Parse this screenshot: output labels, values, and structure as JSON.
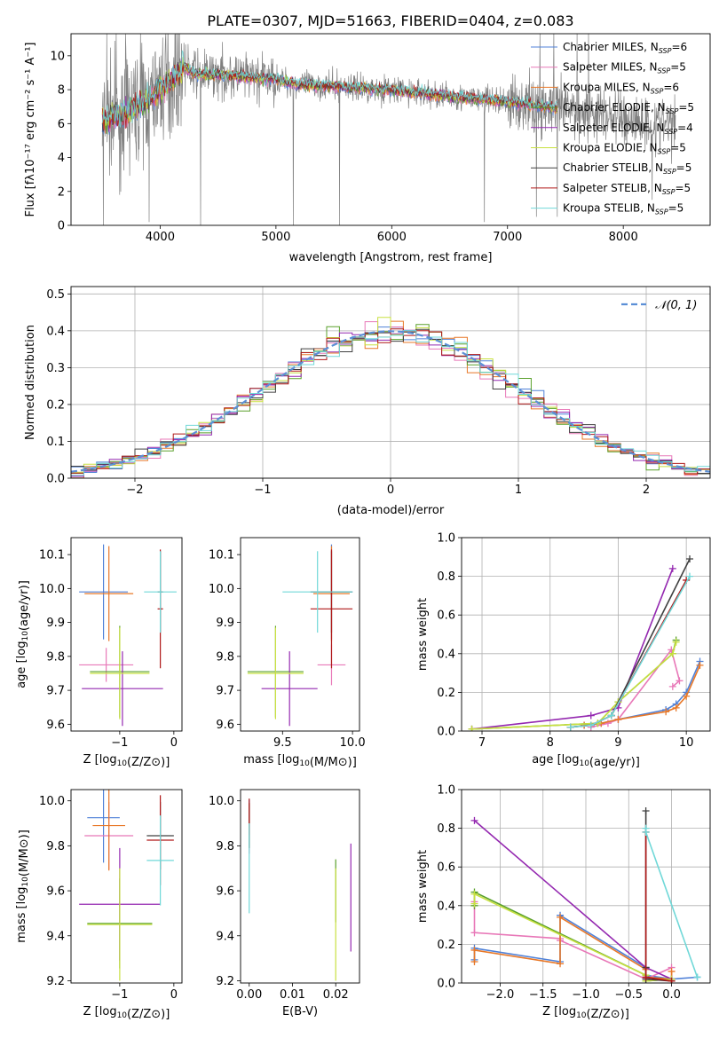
{
  "figure": {
    "title": "PLATE=0307, MJD=51663, FIBERID=0404, z=0.083"
  },
  "colors": {
    "Chabrier MILES": "#4f81d8",
    "Salpeter MILES": "#e878b8",
    "Kroupa MILES": "#e87828",
    "Chabrier ELODIE": "#5aa02c",
    "Salpeter ELODIE": "#9428b0",
    "Kroupa ELODIE": "#c8e040",
    "Chabrier STELIB": "#404040",
    "Salpeter STELIB": "#b01818",
    "Kroupa STELIB": "#70d8d8",
    "data": "#808080",
    "normal": "#5b8fd6"
  },
  "chart_data": [
    {
      "id": "spectrum",
      "type": "line",
      "title": "PLATE=0307, MJD=51663, FIBERID=0404, z=0.083",
      "xlabel": "wavelength [Angstrom, rest frame]",
      "ylabel": "Flux [fλ10⁻¹⁷ erg cm⁻² s⁻¹ A⁻¹]",
      "xlim": [
        3230,
        8750
      ],
      "ylim": [
        0,
        11.3
      ],
      "xticks": [
        4000,
        5000,
        6000,
        7000,
        8000
      ],
      "yticks": [
        0,
        2,
        4,
        6,
        8,
        10
      ],
      "grid": false,
      "legend_position": "top-right",
      "legend": [
        {
          "label": "Chabrier MILES, N",
          "sub": "SSP",
          "suffix": "=6"
        },
        {
          "label": "Salpeter MILES, N",
          "sub": "SSP",
          "suffix": "=5"
        },
        {
          "label": "Kroupa MILES, N",
          "sub": "SSP",
          "suffix": "=6"
        },
        {
          "label": "Chabrier ELODIE, N",
          "sub": "SSP",
          "suffix": "=5"
        },
        {
          "label": "Salpeter ELODIE, N",
          "sub": "SSP",
          "suffix": "=4"
        },
        {
          "label": "Kroupa ELODIE, N",
          "sub": "SSP",
          "suffix": "=5"
        },
        {
          "label": "Chabrier STELIB, N",
          "sub": "SSP",
          "suffix": "=5"
        },
        {
          "label": "Salpeter STELIB, N",
          "sub": "SSP",
          "suffix": "=5"
        },
        {
          "label": "Kroupa STELIB, N",
          "sub": "SSP",
          "suffix": "=5"
        }
      ],
      "data_range": [
        3500,
        8450
      ],
      "model_range": [
        3500,
        7430
      ],
      "continuum": [
        [
          3500,
          6.2
        ],
        [
          3700,
          6.6
        ],
        [
          3800,
          7.0
        ],
        [
          3900,
          7.4
        ],
        [
          4000,
          8.1
        ],
        [
          4100,
          8.6
        ],
        [
          4200,
          9.4
        ],
        [
          4300,
          8.9
        ],
        [
          4500,
          8.9
        ],
        [
          4800,
          8.7
        ],
        [
          5000,
          8.6
        ],
        [
          5200,
          8.3
        ],
        [
          5500,
          8.2
        ],
        [
          6000,
          8.0
        ],
        [
          6500,
          7.6
        ],
        [
          7000,
          7.3
        ],
        [
          7400,
          6.9
        ],
        [
          7800,
          6.6
        ],
        [
          8000,
          6.3
        ],
        [
          8200,
          6.1
        ],
        [
          8450,
          5.9
        ]
      ],
      "spikes_up": [
        [
          3540,
          11.3
        ],
        [
          3620,
          11.3
        ],
        [
          3700,
          11.3
        ],
        [
          3830,
          11.3
        ],
        [
          4050,
          11.3
        ],
        [
          5150,
          11.3
        ],
        [
          7280,
          11.3
        ],
        [
          7400,
          11.3
        ],
        [
          7600,
          11.3
        ],
        [
          7700,
          11.3
        ]
      ],
      "spikes_down": [
        [
          3510,
          0
        ],
        [
          3650,
          1.8
        ],
        [
          3905,
          0.2
        ],
        [
          4350,
          0
        ],
        [
          5150,
          0
        ],
        [
          5550,
          0
        ],
        [
          6800,
          0.2
        ],
        [
          7250,
          0.5
        ],
        [
          7430,
          0.5
        ],
        [
          8250,
          1.5
        ]
      ]
    },
    {
      "id": "residuals",
      "type": "histogram",
      "xlabel": "(data-model)/error",
      "ylabel": "Normed distribution",
      "xlim": [
        -2.5,
        2.5
      ],
      "ylim": [
        0,
        0.52
      ],
      "xticks": [
        -2,
        -1,
        0,
        1,
        2
      ],
      "yticks": [
        0.0,
        0.1,
        0.2,
        0.3,
        0.4,
        0.5
      ],
      "grid": true,
      "legend_position": "top-right",
      "legend_label": "𝒩(0, 1)",
      "bin_width": 0.1,
      "spread": [
        0.03,
        0.06
      ]
    },
    {
      "id": "age_vs_Z",
      "type": "errorbar",
      "xlabel": "Z [log₁₀(Z/Z⊙)]",
      "ylabel": "age  [log₁₀(age/yr)]",
      "xlim": [
        -1.9,
        0.15
      ],
      "ylim": [
        9.58,
        10.15
      ],
      "xticks": [
        -1,
        0
      ],
      "yticks": [
        9.6,
        9.7,
        9.8,
        9.9,
        10.0,
        10.1
      ],
      "grid": false,
      "points": [
        {
          "model": "Chabrier MILES",
          "x": -1.3,
          "xerr": 0.45,
          "y": 9.99,
          "yerr": 0.14
        },
        {
          "model": "Salpeter MILES",
          "x": -1.25,
          "xerr": 0.5,
          "y": 9.775,
          "yerr": 0.05
        },
        {
          "model": "Kroupa MILES",
          "x": -1.2,
          "xerr": 0.45,
          "y": 9.985,
          "yerr": 0.14
        },
        {
          "model": "Chabrier ELODIE",
          "x": -1.0,
          "xerr": 0.55,
          "y": 9.755,
          "yerr": 0.135
        },
        {
          "model": "Salpeter ELODIE",
          "x": -0.95,
          "xerr": 0.75,
          "y": 9.705,
          "yerr": 0.11
        },
        {
          "model": "Kroupa ELODIE",
          "x": -1.0,
          "xerr": 0.55,
          "y": 9.75,
          "yerr": 0.135
        },
        {
          "model": "Chabrier STELIB",
          "x": -0.25,
          "xerr": 0.05,
          "y": 9.99,
          "yerr": 0.12
        },
        {
          "model": "Salpeter STELIB",
          "x": -0.25,
          "xerr": 0.05,
          "y": 9.94,
          "yerr": 0.175
        },
        {
          "model": "Kroupa STELIB",
          "x": -0.25,
          "xerr": 0.3,
          "y": 9.99,
          "yerr": 0.12
        }
      ]
    },
    {
      "id": "age_vs_mass",
      "type": "errorbar",
      "xlabel": "mass [log₁₀(M/M⊙)]",
      "ylabel": "",
      "xlim": [
        9.2,
        10.05
      ],
      "ylim": [
        9.58,
        10.15
      ],
      "xticks": [
        9.5,
        10.0
      ],
      "yticks": [
        9.6,
        9.7,
        9.8,
        9.9,
        10.0,
        10.1
      ],
      "grid": false,
      "points": [
        {
          "model": "Chabrier MILES",
          "x": 9.85,
          "xerr": 0.15,
          "y": 9.99,
          "yerr": 0.14
        },
        {
          "model": "Salpeter MILES",
          "x": 9.85,
          "xerr": 0.1,
          "y": 9.775,
          "yerr": 0.06
        },
        {
          "model": "Kroupa MILES",
          "x": 9.85,
          "xerr": 0.13,
          "y": 9.985,
          "yerr": 0.14
        },
        {
          "model": "Chabrier ELODIE",
          "x": 9.45,
          "xerr": 0.2,
          "y": 9.755,
          "yerr": 0.135
        },
        {
          "model": "Salpeter ELODIE",
          "x": 9.55,
          "xerr": 0.2,
          "y": 9.705,
          "yerr": 0.11
        },
        {
          "model": "Kroupa ELODIE",
          "x": 9.45,
          "xerr": 0.2,
          "y": 9.75,
          "yerr": 0.135
        },
        {
          "model": "Chabrier STELIB",
          "x": 9.85,
          "xerr": 0.15,
          "y": 9.99,
          "yerr": 0.12
        },
        {
          "model": "Salpeter STELIB",
          "x": 9.85,
          "xerr": 0.15,
          "y": 9.94,
          "yerr": 0.175
        },
        {
          "model": "Kroupa STELIB",
          "x": 9.75,
          "xerr": 0.25,
          "y": 9.99,
          "yerr": 0.12
        }
      ]
    },
    {
      "id": "weight_vs_age",
      "type": "line",
      "xlabel": "age  [log₁₀(age/yr)]",
      "ylabel": "mass weight",
      "xlim": [
        6.7,
        10.35
      ],
      "ylim": [
        0,
        1.0
      ],
      "xticks": [
        7,
        8,
        9,
        10
      ],
      "yticks": [
        0.0,
        0.2,
        0.4,
        0.6,
        0.8,
        1.0
      ],
      "grid": true,
      "series": [
        {
          "model": "Chabrier MILES",
          "x": [
            8.5,
            8.75,
            9.0,
            9.7,
            9.85,
            10.0,
            10.2
          ],
          "y": [
            0.03,
            0.04,
            0.06,
            0.11,
            0.14,
            0.2,
            0.36
          ]
        },
        {
          "model": "Salpeter MILES",
          "x": [
            8.6,
            8.85,
            9.0,
            9.78,
            9.9,
            9.8
          ],
          "y": [
            0.02,
            0.04,
            0.06,
            0.42,
            0.26,
            0.23
          ]
        },
        {
          "model": "Kroupa MILES",
          "x": [
            8.5,
            8.75,
            9.0,
            9.7,
            9.85,
            10.0,
            10.2
          ],
          "y": [
            0.03,
            0.04,
            0.06,
            0.1,
            0.12,
            0.18,
            0.34
          ]
        },
        {
          "model": "Chabrier ELODIE",
          "x": [
            6.85,
            8.7,
            9.0,
            9.8,
            9.85
          ],
          "y": [
            0.01,
            0.04,
            0.15,
            0.4,
            0.47
          ]
        },
        {
          "model": "Salpeter ELODIE",
          "x": [
            6.85,
            8.6,
            9.0,
            9.8
          ],
          "y": [
            0.01,
            0.08,
            0.12,
            0.84
          ]
        },
        {
          "model": "Kroupa ELODIE",
          "x": [
            6.85,
            8.7,
            9.0,
            9.8,
            9.85
          ],
          "y": [
            0.01,
            0.04,
            0.15,
            0.4,
            0.46
          ]
        },
        {
          "model": "Chabrier STELIB",
          "x": [
            8.3,
            8.6,
            8.9,
            10.05
          ],
          "y": [
            0.02,
            0.03,
            0.08,
            0.89
          ]
        },
        {
          "model": "Salpeter STELIB",
          "x": [
            8.3,
            8.6,
            8.9,
            10.0
          ],
          "y": [
            0.02,
            0.03,
            0.08,
            0.78
          ]
        },
        {
          "model": "Kroupa STELIB",
          "x": [
            8.3,
            8.6,
            8.9,
            10.05
          ],
          "y": [
            0.02,
            0.03,
            0.08,
            0.8
          ]
        }
      ]
    },
    {
      "id": "mass_vs_Z",
      "type": "errorbar",
      "xlabel": "Z [log₁₀(Z/Z⊙)]",
      "ylabel": "mass [log₁₀(M/M⊙)]",
      "xlim": [
        -1.9,
        0.15
      ],
      "ylim": [
        9.19,
        10.05
      ],
      "xticks": [
        -1,
        0
      ],
      "yticks": [
        9.2,
        9.4,
        9.6,
        9.8,
        10.0
      ],
      "grid": false,
      "points": [
        {
          "model": "Chabrier MILES",
          "x": -1.3,
          "xerr": 0.3,
          "y": 9.925,
          "yerr": 0.2
        },
        {
          "model": "Salpeter MILES",
          "x": -1.2,
          "xerr": 0.45,
          "y": 9.845,
          "yerr": 0.15
        },
        {
          "model": "Kroupa MILES",
          "x": -1.2,
          "xerr": 0.3,
          "y": 9.89,
          "yerr": 0.2
        },
        {
          "model": "Chabrier ELODIE",
          "x": -1.0,
          "xerr": 0.6,
          "y": 9.455,
          "yerr": 0.2
        },
        {
          "model": "Salpeter ELODIE",
          "x": -1.0,
          "xerr": 0.75,
          "y": 9.54,
          "yerr": 0.25
        },
        {
          "model": "Kroupa ELODIE",
          "x": -1.0,
          "xerr": 0.6,
          "y": 9.45,
          "yerr": 0.25
        },
        {
          "model": "Chabrier STELIB",
          "x": -0.25,
          "xerr": 0.25,
          "y": 9.845,
          "yerr": 0.15
        },
        {
          "model": "Salpeter STELIB",
          "x": -0.25,
          "xerr": 0.25,
          "y": 9.825,
          "yerr": 0.2
        },
        {
          "model": "Kroupa STELIB",
          "x": -0.25,
          "xerr": 0.25,
          "y": 9.735,
          "yerr": 0.2
        }
      ]
    },
    {
      "id": "mass_vs_ebv",
      "type": "errorbar",
      "xlabel": "E(B-V)",
      "ylabel": "",
      "xlim": [
        -0.002,
        0.0255
      ],
      "ylim": [
        9.19,
        10.05
      ],
      "xticks": [
        0.0,
        0.01,
        0.02
      ],
      "yticks": [
        9.2,
        9.4,
        9.6,
        9.8,
        10.0
      ],
      "grid": false,
      "points": [
        {
          "model": "Chabrier MILES",
          "x": 0.0,
          "xerr": 0,
          "y": 9.925,
          "yerr": 0.08
        },
        {
          "model": "Salpeter MILES",
          "x": 0.0,
          "xerr": 0,
          "y": 9.845,
          "yerr": 0.08
        },
        {
          "model": "Kroupa MILES",
          "x": 0.0,
          "xerr": 0,
          "y": 9.89,
          "yerr": 0.1
        },
        {
          "model": "Chabrier ELODIE",
          "x": 0.02,
          "xerr": 0,
          "y": 9.6,
          "yerr": 0.14
        },
        {
          "model": "Salpeter ELODIE",
          "x": 0.0235,
          "xerr": 0,
          "y": 9.57,
          "yerr": 0.24
        },
        {
          "model": "Kroupa ELODIE",
          "x": 0.02,
          "xerr": 0,
          "y": 9.45,
          "yerr": 0.25
        },
        {
          "model": "Chabrier STELIB",
          "x": 0.0,
          "xerr": 0,
          "y": 9.89,
          "yerr": 0.1
        },
        {
          "model": "Salpeter STELIB",
          "x": 0.0,
          "xerr": 0,
          "y": 9.93,
          "yerr": 0.08
        },
        {
          "model": "Kroupa STELIB",
          "x": 0.0,
          "xerr": 0,
          "y": 9.7,
          "yerr": 0.2
        }
      ]
    },
    {
      "id": "weight_vs_Z",
      "type": "line",
      "xlabel": "Z [log₁₀(Z/Z⊙)]",
      "ylabel": "mass weight",
      "xlim": [
        -2.45,
        0.45
      ],
      "ylim": [
        0,
        1.0
      ],
      "xticks": [
        -2.0,
        -1.5,
        -1.0,
        -0.5,
        0.0
      ],
      "yticks": [
        0.0,
        0.2,
        0.4,
        0.6,
        0.8,
        1.0
      ],
      "grid": true,
      "series": [
        {
          "model": "Chabrier MILES",
          "x": [
            -2.3,
            -2.3,
            -1.3,
            -1.3,
            -0.3,
            -0.3,
            0.0,
            0.3
          ],
          "y": [
            0.12,
            0.18,
            0.11,
            0.35,
            0.08,
            0.04,
            0.02,
            0.03
          ]
        },
        {
          "model": "Salpeter MILES",
          "x": [
            -2.3,
            -2.3,
            -1.3,
            -1.3,
            -0.3,
            0.0
          ],
          "y": [
            0.42,
            0.26,
            0.23,
            0.22,
            0.02,
            0.08
          ]
        },
        {
          "model": "Kroupa MILES",
          "x": [
            -2.3,
            -2.3,
            -1.3,
            -1.3,
            -0.3,
            -0.3,
            0.0,
            0.0
          ],
          "y": [
            0.11,
            0.17,
            0.1,
            0.34,
            0.07,
            0.03,
            0.02,
            0.06
          ]
        },
        {
          "model": "Chabrier ELODIE",
          "x": [
            -2.3,
            -2.3,
            -0.3,
            -0.3,
            0.0
          ],
          "y": [
            0.4,
            0.47,
            0.04,
            0.01,
            0.02
          ]
        },
        {
          "model": "Salpeter ELODIE",
          "x": [
            -2.3,
            -0.3,
            0.0
          ],
          "y": [
            0.84,
            0.08,
            0.02
          ]
        },
        {
          "model": "Kroupa ELODIE",
          "x": [
            -2.3,
            -2.3,
            -0.3,
            -0.3,
            0.0
          ],
          "y": [
            0.41,
            0.46,
            0.04,
            0.01,
            0.02
          ]
        },
        {
          "model": "Chabrier STELIB",
          "x": [
            -0.3,
            -0.3,
            -0.3,
            0.0
          ],
          "y": [
            0.89,
            0.08,
            0.02,
            0.01
          ]
        },
        {
          "model": "Salpeter STELIB",
          "x": [
            -0.3,
            -0.3,
            0.0
          ],
          "y": [
            0.78,
            0.03,
            0.01
          ]
        },
        {
          "model": "Kroupa STELIB",
          "x": [
            -0.3,
            -0.3,
            0.3
          ],
          "y": [
            0.8,
            0.78,
            0.03
          ]
        }
      ]
    }
  ]
}
